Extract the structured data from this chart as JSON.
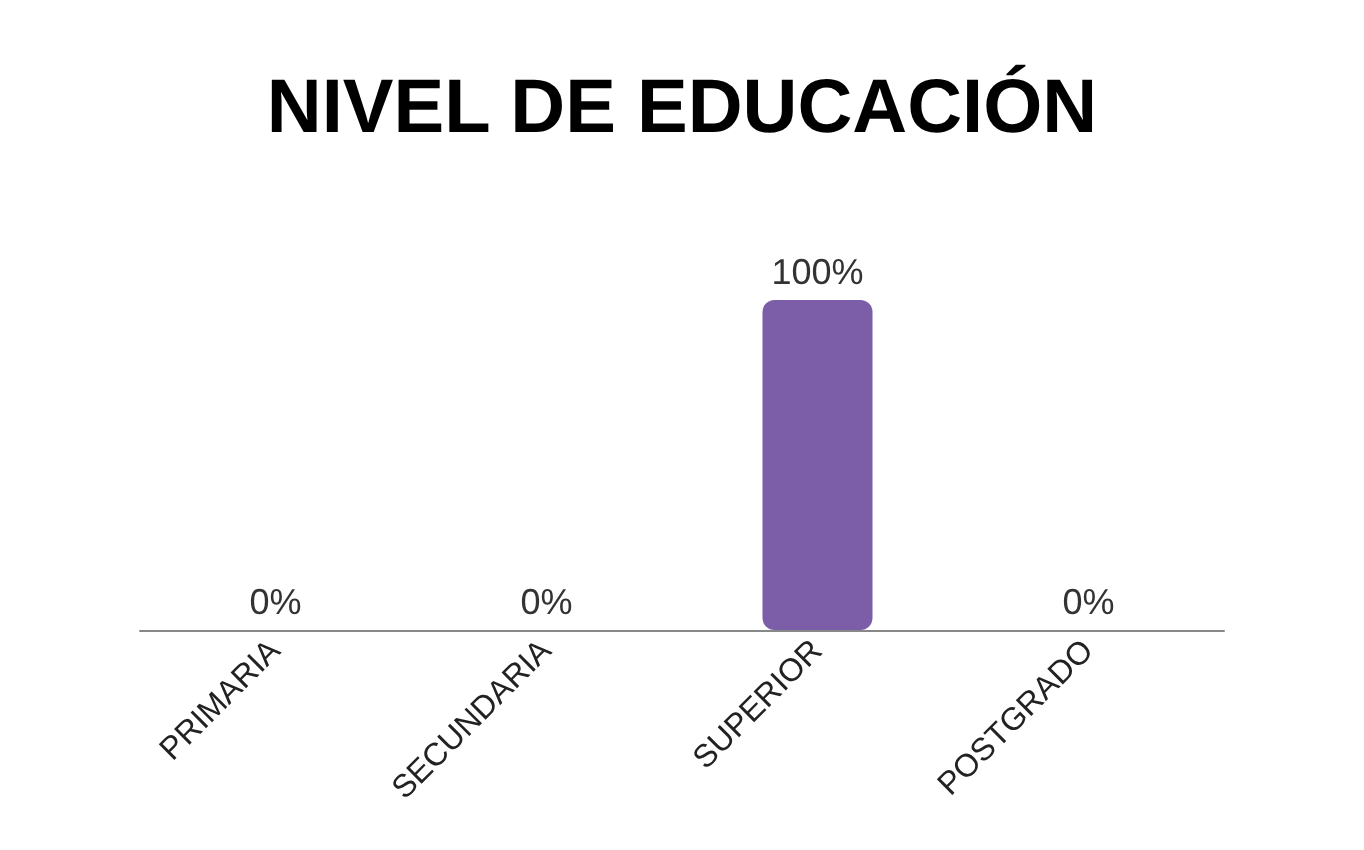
{
  "chart_data": {
    "type": "bar",
    "title": "NIVEL DE EDUCACIÓN",
    "categories": [
      "PRIMARIA",
      "SECUNDARIA",
      "SUPERIOR",
      "POSTGRADO"
    ],
    "values": [
      0,
      0,
      100,
      0
    ],
    "value_labels": [
      "0%",
      "0%",
      "100%",
      "0%"
    ],
    "color": "#7b5ea7"
  }
}
